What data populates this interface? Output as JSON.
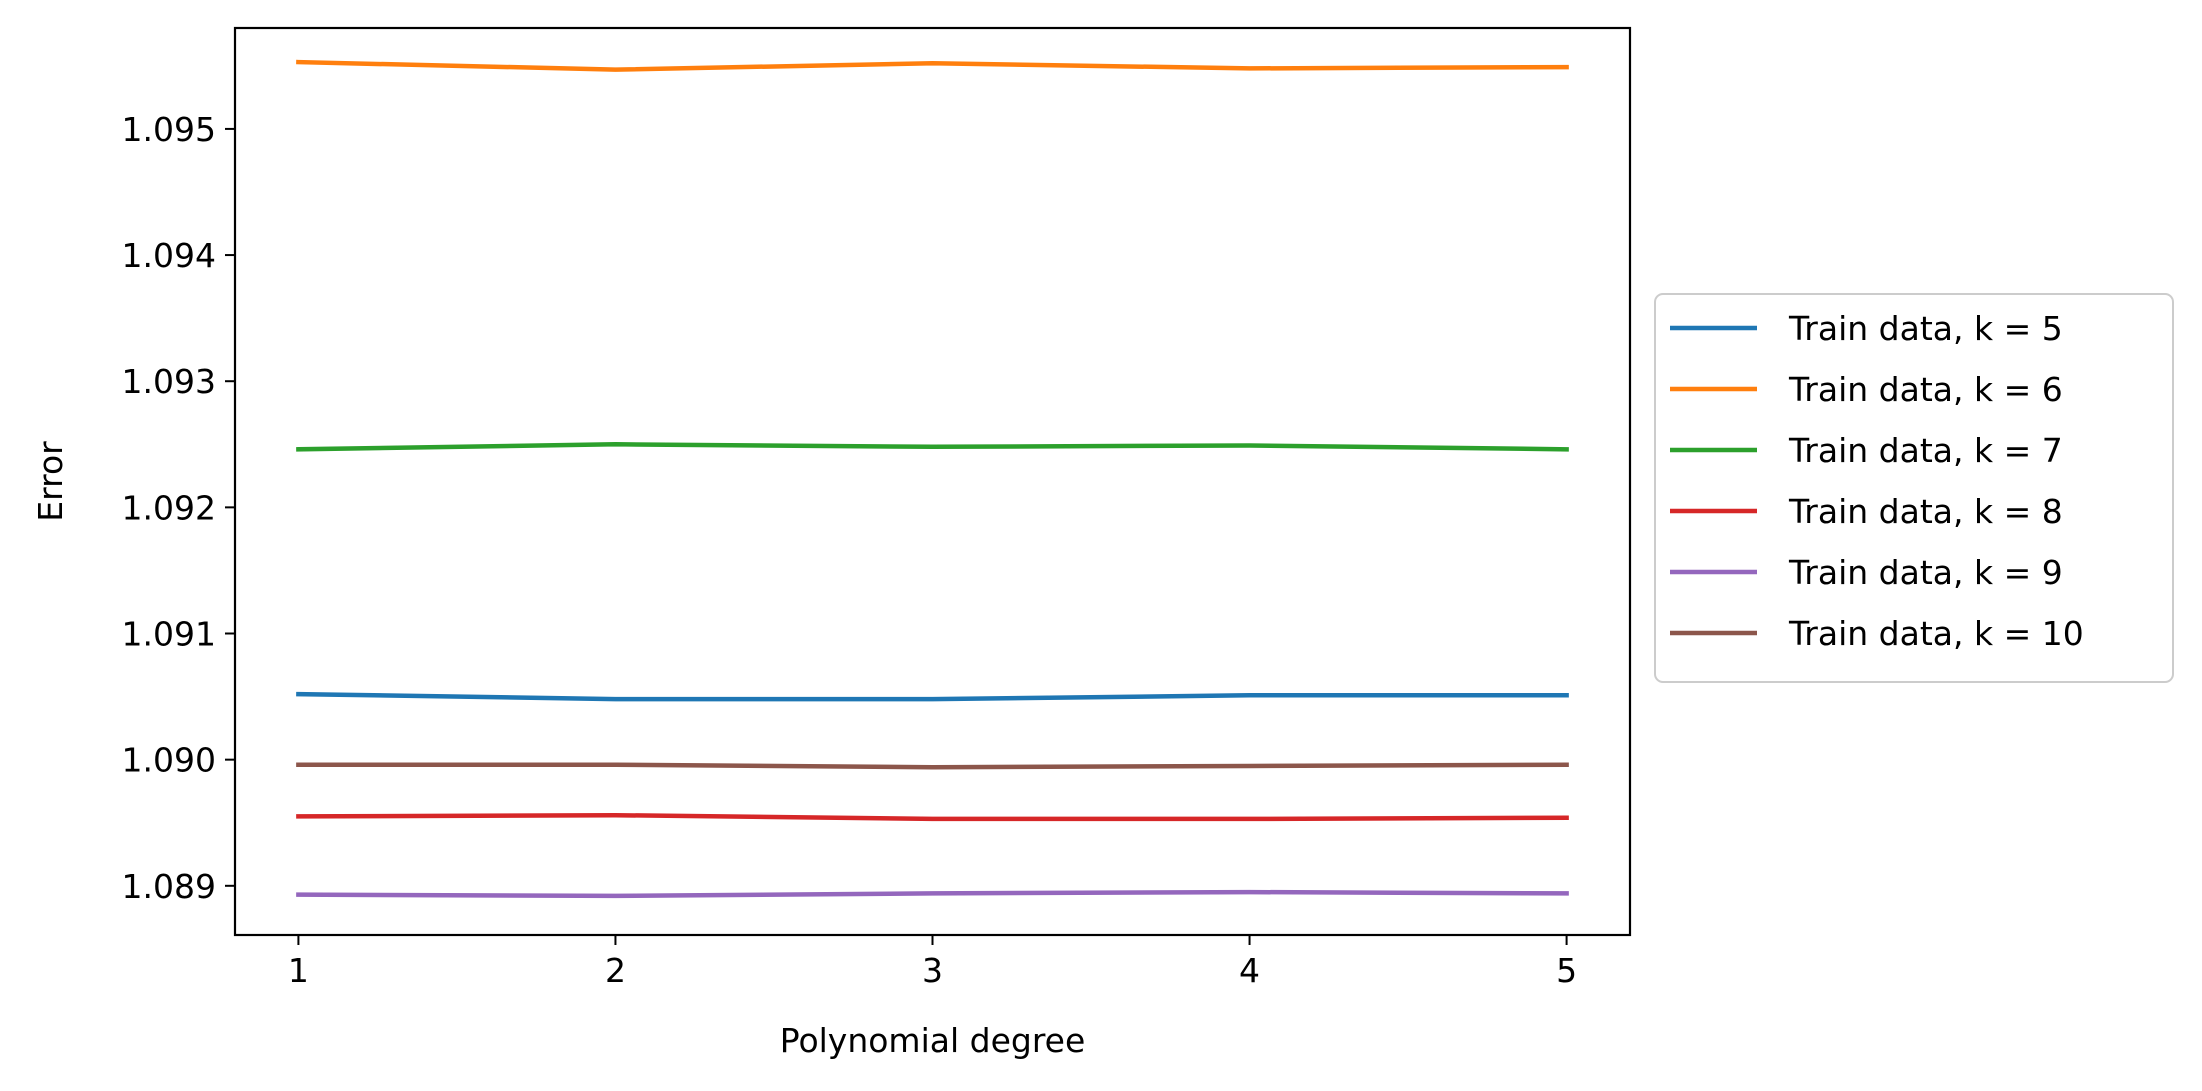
{
  "chart_data": {
    "type": "line",
    "title": "",
    "xlabel": "Polynomial degree",
    "ylabel": "Error",
    "x": [
      1,
      2,
      3,
      4,
      5
    ],
    "xlim": [
      0.8,
      5.2
    ],
    "ylim": [
      1.08861,
      1.0958
    ],
    "xticks": [
      1,
      2,
      3,
      4,
      5
    ],
    "xtick_labels": [
      "1",
      "2",
      "3",
      "4",
      "5"
    ],
    "yticks": [
      1.089,
      1.09,
      1.091,
      1.092,
      1.093,
      1.094,
      1.095
    ],
    "ytick_labels": [
      "1.089",
      "1.090",
      "1.091",
      "1.092",
      "1.093",
      "1.094",
      "1.095"
    ],
    "grid": false,
    "legend_position": "center-right-outside",
    "series": [
      {
        "name": "Train data, k = 5",
        "color": "#1f77b4",
        "values": [
          1.09052,
          1.09048,
          1.09048,
          1.09051,
          1.09051
        ]
      },
      {
        "name": "Train data, k = 6",
        "color": "#ff7f0e",
        "values": [
          1.09553,
          1.09547,
          1.09552,
          1.09548,
          1.09549
        ]
      },
      {
        "name": "Train data, k = 7",
        "color": "#2ca02c",
        "values": [
          1.09246,
          1.0925,
          1.09248,
          1.09249,
          1.09246
        ]
      },
      {
        "name": "Train data, k = 8",
        "color": "#d62728",
        "values": [
          1.08955,
          1.08956,
          1.08953,
          1.08953,
          1.08954
        ]
      },
      {
        "name": "Train data, k = 9",
        "color": "#9467bd",
        "values": [
          1.08893,
          1.08892,
          1.08894,
          1.08895,
          1.08894
        ]
      },
      {
        "name": "Train data, k = 10",
        "color": "#8c564b",
        "values": [
          1.08996,
          1.08996,
          1.08994,
          1.08995,
          1.08996
        ]
      }
    ]
  }
}
